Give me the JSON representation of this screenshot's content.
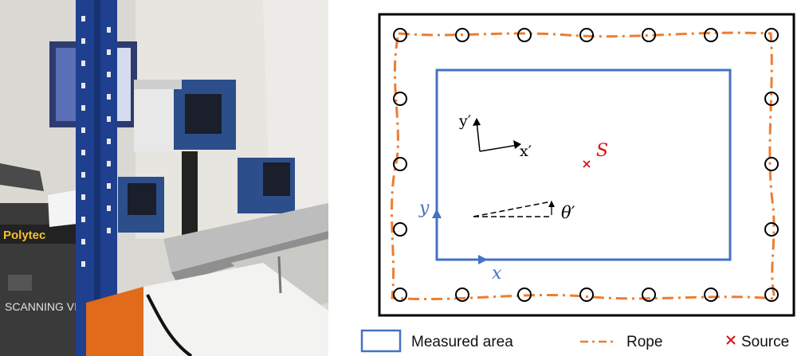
{
  "colors": {
    "measured_area": "#4472c4",
    "rope": "#ed7d31",
    "source": "#e01010",
    "frame": "#000000"
  },
  "photo": {
    "rack_text": "Polytec",
    "case_text": "SCANNING VIBROMETER"
  },
  "diagram": {
    "axes_primed": {
      "x_label": "x′",
      "y_label": "y′"
    },
    "source_label": "S",
    "angle_label": "θ′",
    "axis_x_label": "x",
    "axis_y_label": "y"
  },
  "legend": {
    "items": [
      {
        "label": "Measured area",
        "swatch": "rect"
      },
      {
        "label": "Rope",
        "swatch": "dashdot"
      },
      {
        "label": "Source",
        "swatch": "cross"
      }
    ]
  }
}
